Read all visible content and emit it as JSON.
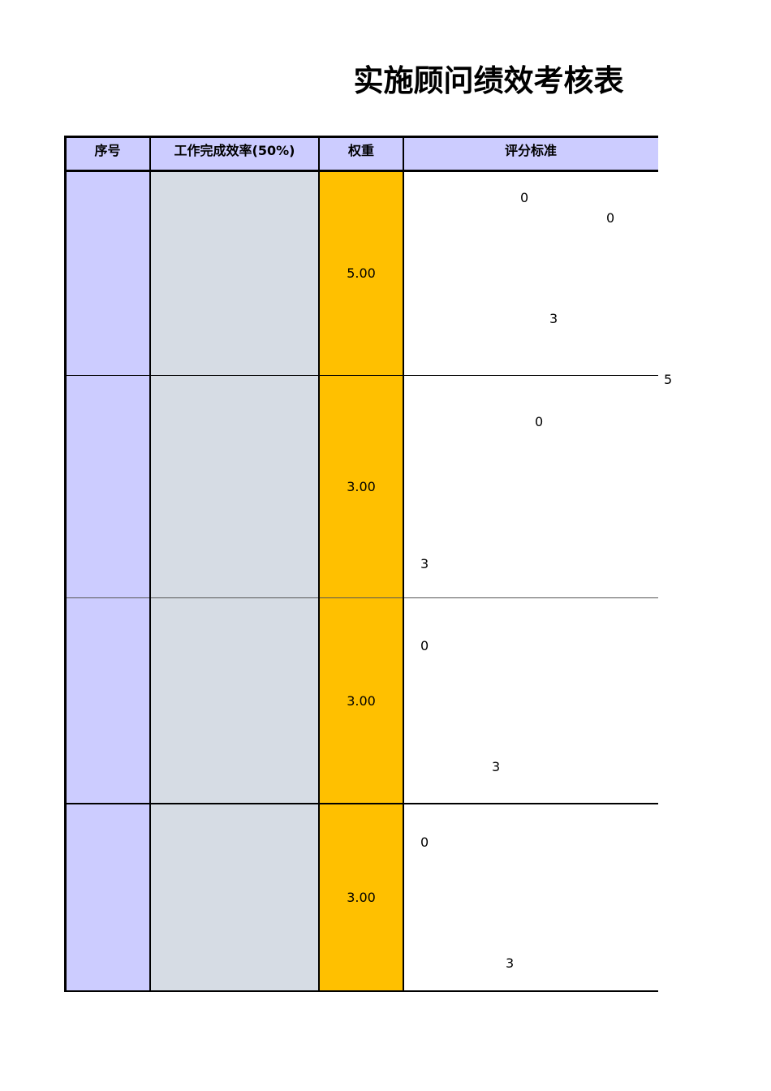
{
  "header": {
    "title": "实施顾问绩效考核表"
  },
  "table": {
    "columns": [
      "序号",
      "工作完成效率(50%)",
      "权重",
      "评分标准"
    ],
    "rows": [
      {
        "weight": "5.00",
        "criteria": [
          "0",
          "0",
          "3"
        ]
      },
      {
        "weight": "3.00",
        "criteria": [
          "0",
          "3"
        ]
      },
      {
        "weight": "3.00",
        "criteria": [
          "0",
          "3"
        ]
      },
      {
        "weight": "3.00",
        "criteria": [
          "0",
          "3"
        ]
      }
    ],
    "side_note": "5"
  }
}
